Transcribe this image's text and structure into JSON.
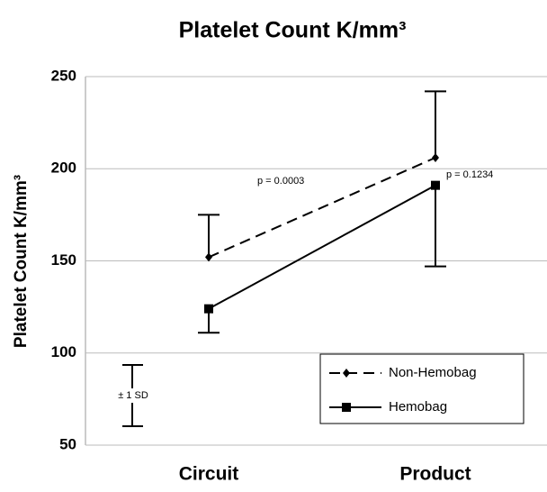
{
  "chart_data": {
    "type": "line",
    "title": "Platelet Count K/mm³",
    "y_label": "Platelet Count K/mm³",
    "categories": [
      "Circuit",
      "Product"
    ],
    "series": [
      {
        "name": "Non-Hemobag",
        "color": "#000000",
        "dashed": true,
        "marker": "diamond",
        "values": [
          152,
          206
        ],
        "errors": [
          23,
          36
        ],
        "error_direction": "up"
      },
      {
        "name": "Hemobag",
        "color": "#000000",
        "dashed": false,
        "marker": "square",
        "values": [
          124,
          191
        ],
        "errors": [
          13,
          44
        ],
        "error_direction": "down"
      }
    ],
    "ylim": [
      50,
      250
    ],
    "yticks": [
      50,
      100,
      150,
      200,
      250
    ],
    "grid": true,
    "annotations": [
      "p = 0.0003",
      "p = 0.1234"
    ],
    "sd_key": "± 1 SD",
    "legend": "lower-right"
  }
}
